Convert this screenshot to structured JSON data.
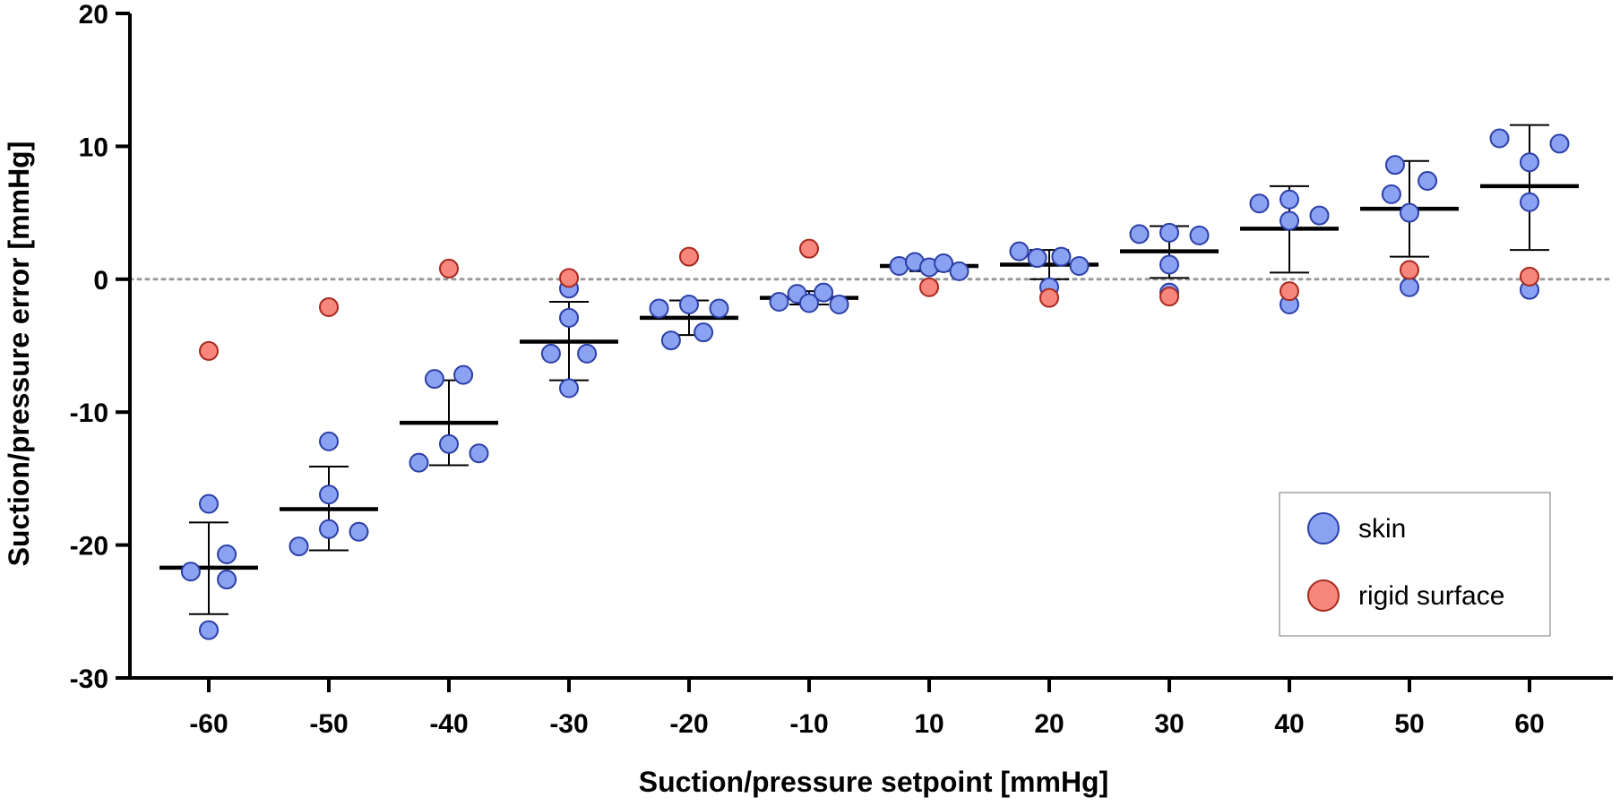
{
  "chart_data": {
    "type": "scatter",
    "title": "",
    "xlabel": "Suction/pressure setpoint [mmHg]",
    "ylabel": "Suction/pressure error [mmHg]",
    "ylim": [
      -30,
      20
    ],
    "yticks": [
      "20",
      "10",
      "0",
      "-10",
      "-20",
      "-30"
    ],
    "yticks_values": [
      20,
      10,
      0,
      -10,
      -20,
      -30
    ],
    "categories": [
      "-60",
      "-50",
      "-40",
      "-30",
      "-20",
      "-10",
      "10",
      "20",
      "30",
      "40",
      "50",
      "60"
    ],
    "reference_line": 0,
    "legend": {
      "position": "bottom-right",
      "entries": [
        "skin",
        "rigid surface"
      ]
    },
    "colors": {
      "skin_fill": "#8ba1f2",
      "skin_edge": "#2b3fa8",
      "rigid_fill": "#f7867c",
      "rigid_edge": "#a8281e",
      "reference": "#9a9a9a",
      "axis": "#000000"
    },
    "series": [
      {
        "name": "skin",
        "points": [
          [
            [
              -0.15,
              -22.0
            ],
            [
              0.0,
              -26.4
            ],
            [
              0.0,
              -16.9
            ],
            [
              0.15,
              -20.7
            ],
            [
              0.15,
              -22.6
            ]
          ],
          [
            [
              -0.25,
              -20.1
            ],
            [
              0.0,
              -18.8
            ],
            [
              0.0,
              -16.2
            ],
            [
              0.0,
              -12.2
            ],
            [
              0.25,
              -19.0
            ]
          ],
          [
            [
              -0.25,
              -13.8
            ],
            [
              -0.12,
              -7.5
            ],
            [
              0.0,
              -12.4
            ],
            [
              0.12,
              -7.2
            ],
            [
              0.25,
              -13.1
            ]
          ],
          [
            [
              -0.15,
              -5.6
            ],
            [
              0.0,
              -8.2
            ],
            [
              0.0,
              -2.9
            ],
            [
              0.0,
              -0.7
            ],
            [
              0.15,
              -5.6
            ]
          ],
          [
            [
              -0.25,
              -2.2
            ],
            [
              -0.15,
              -4.6
            ],
            [
              0.0,
              -1.9
            ],
            [
              0.12,
              -4.0
            ],
            [
              0.25,
              -2.2
            ]
          ],
          [
            [
              -0.25,
              -1.7
            ],
            [
              -0.1,
              -1.1
            ],
            [
              0.0,
              -1.8
            ],
            [
              0.12,
              -1.0
            ],
            [
              0.25,
              -1.9
            ]
          ],
          [
            [
              -0.25,
              1.0
            ],
            [
              -0.12,
              1.3
            ],
            [
              0.0,
              0.9
            ],
            [
              0.12,
              1.2
            ],
            [
              0.25,
              0.6
            ]
          ],
          [
            [
              -0.25,
              2.1
            ],
            [
              -0.1,
              1.6
            ],
            [
              0.0,
              -0.6
            ],
            [
              0.1,
              1.7
            ],
            [
              0.25,
              1.0
            ]
          ],
          [
            [
              -0.25,
              3.4
            ],
            [
              0.0,
              3.5
            ],
            [
              0.0,
              1.1
            ],
            [
              0.0,
              -1.0
            ],
            [
              0.25,
              3.3
            ]
          ],
          [
            [
              -0.25,
              5.7
            ],
            [
              0.0,
              6.0
            ],
            [
              0.0,
              4.4
            ],
            [
              0.0,
              -1.9
            ],
            [
              0.25,
              4.8
            ]
          ],
          [
            [
              -0.15,
              6.4
            ],
            [
              -0.12,
              8.6
            ],
            [
              0.0,
              5.0
            ],
            [
              0.0,
              -0.6
            ],
            [
              0.15,
              7.4
            ]
          ],
          [
            [
              -0.25,
              10.6
            ],
            [
              0.0,
              8.8
            ],
            [
              0.0,
              5.8
            ],
            [
              0.0,
              -0.8
            ],
            [
              0.25,
              10.2
            ]
          ]
        ]
      },
      {
        "name": "rigid surface",
        "points": [
          [
            [
              0.0,
              -5.4
            ]
          ],
          [
            [
              0.0,
              -2.1
            ]
          ],
          [
            [
              0.0,
              0.8
            ]
          ],
          [
            [
              0.0,
              0.1
            ]
          ],
          [
            [
              0.0,
              1.7
            ]
          ],
          [
            [
              0.0,
              2.3
            ]
          ],
          [
            [
              0.0,
              -0.6
            ]
          ],
          [
            [
              0.0,
              -1.4
            ]
          ],
          [
            [
              0.0,
              -1.3
            ]
          ],
          [
            [
              0.0,
              -0.9
            ]
          ],
          [
            [
              0.0,
              0.7
            ]
          ],
          [
            [
              0.0,
              0.2
            ]
          ]
        ]
      }
    ],
    "summary": {
      "mean": [
        -21.7,
        -17.3,
        -10.8,
        -4.7,
        -2.9,
        -1.4,
        1.0,
        1.1,
        2.1,
        3.8,
        5.3,
        7.0
      ],
      "upper": [
        -18.3,
        -14.1,
        -7.6,
        -1.7,
        -1.6,
        -0.9,
        1.4,
        2.2,
        4.0,
        7.0,
        8.9,
        11.6
      ],
      "lower": [
        -25.2,
        -20.4,
        -14.0,
        -7.6,
        -4.2,
        -1.9,
        0.6,
        0.0,
        0.1,
        0.5,
        1.7,
        2.2
      ]
    }
  }
}
